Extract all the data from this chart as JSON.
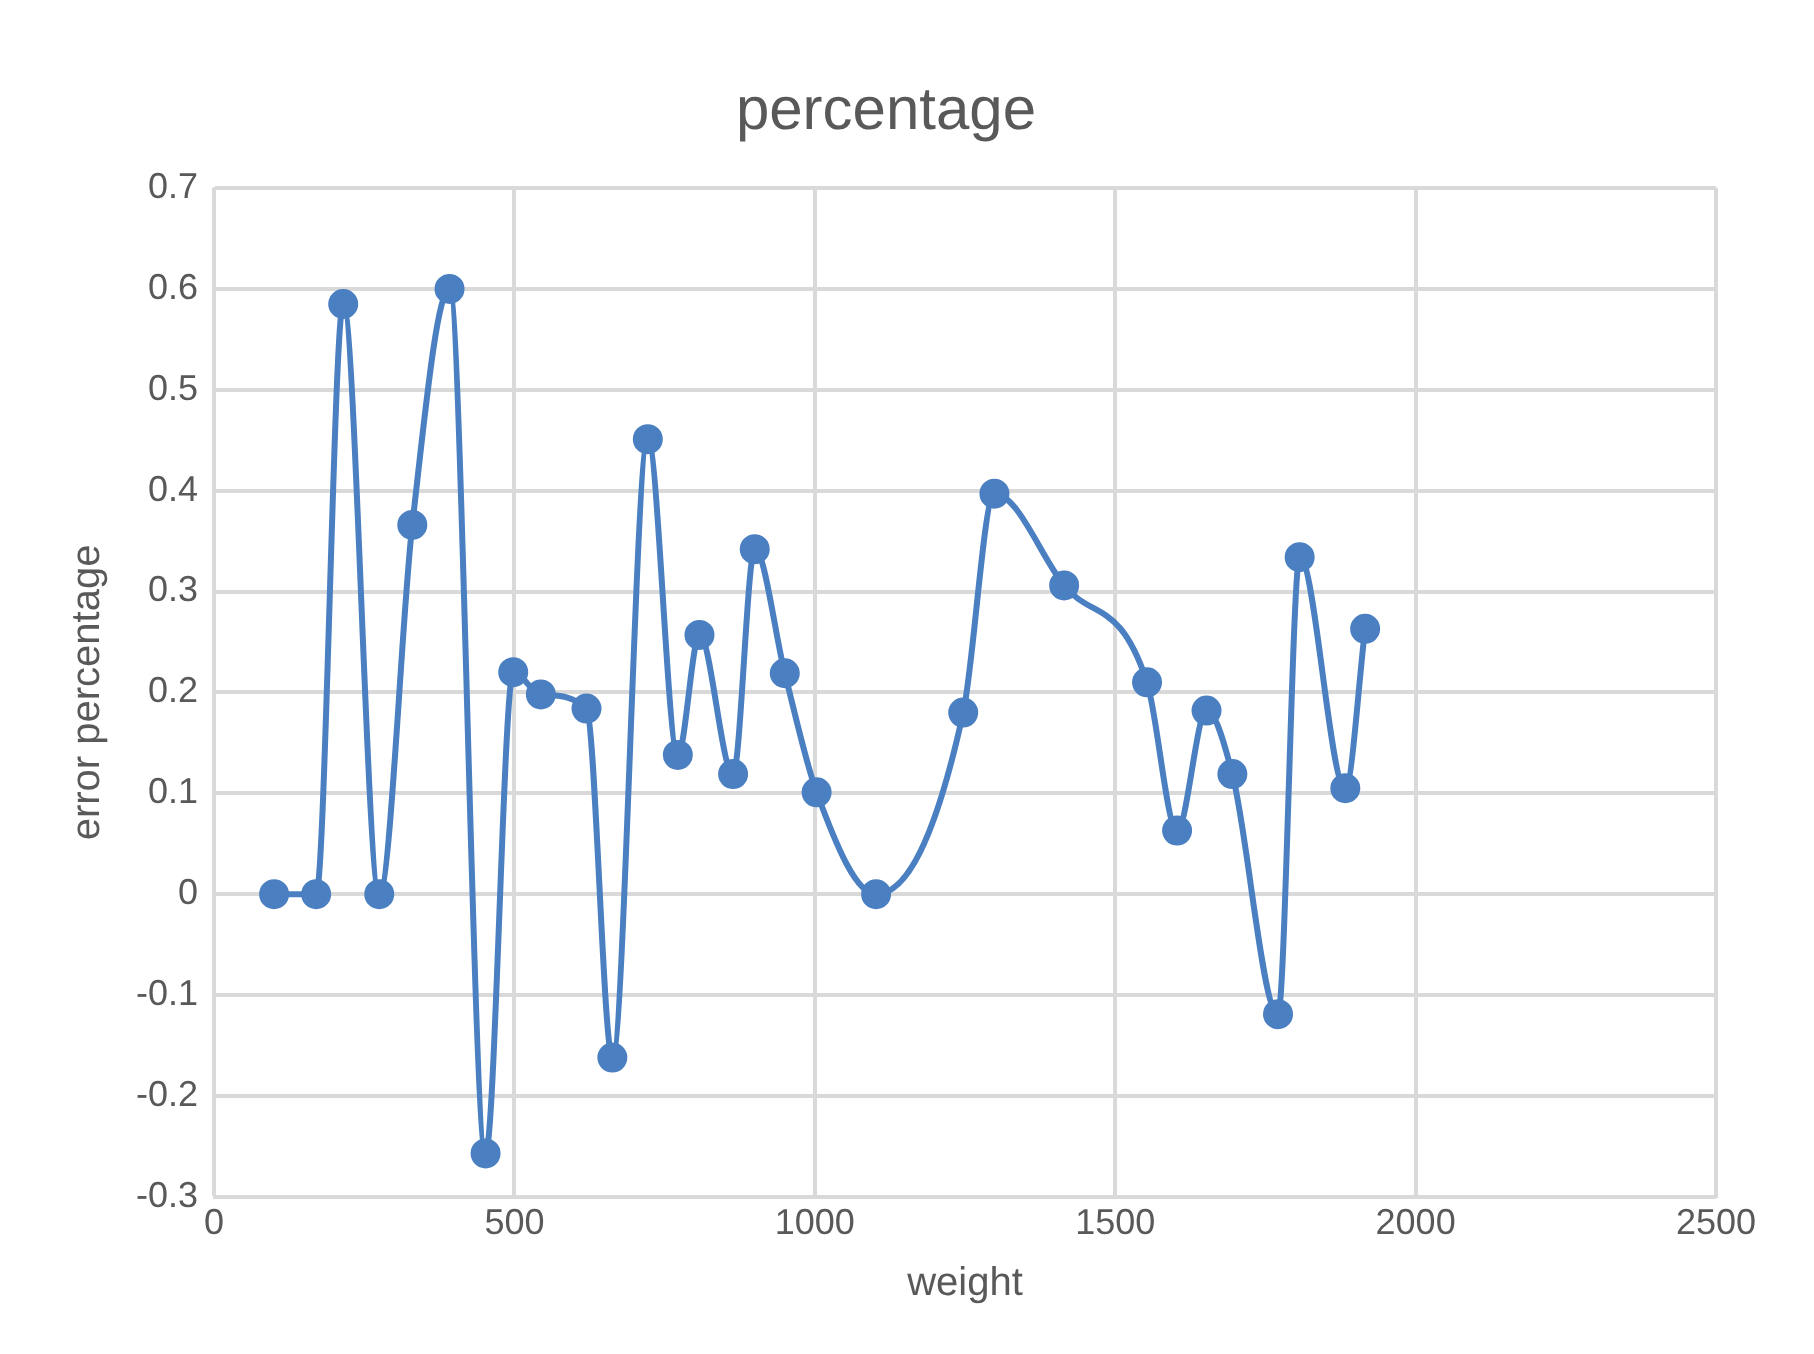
{
  "chart_data": {
    "type": "line",
    "title": "percentage",
    "xlabel": "weight",
    "ylabel": "error percentage",
    "xlim": [
      0,
      2500
    ],
    "xticks": [
      0,
      500,
      1000,
      1500,
      2000,
      2500
    ],
    "ylim": [
      -0.3,
      0.7
    ],
    "yticks": [
      -0.3,
      -0.2,
      -0.1,
      0,
      0.1,
      0.2,
      0.3,
      0.4,
      0.5,
      0.6,
      0.7
    ],
    "grid": true,
    "legend": false,
    "marker": "circle",
    "line_style": "solid",
    "series": [
      {
        "color": "#4a7fc1",
        "x": [
          100,
          170,
          215,
          275,
          330,
          392,
          452,
          498,
          544,
          620,
          663,
          722,
          772,
          808,
          864,
          900,
          950,
          1003,
          1102,
          1247,
          1299,
          1415,
          1553,
          1603,
          1652,
          1695,
          1771,
          1807,
          1883,
          1916
        ],
        "values": [
          0,
          0,
          0.585,
          0,
          0.366,
          0.6,
          -0.257,
          0.22,
          0.198,
          0.184,
          -0.162,
          0.451,
          0.138,
          0.257,
          0.119,
          0.342,
          0.219,
          0.101,
          0,
          0.18,
          0.397,
          0.306,
          0.21,
          0.063,
          0.182,
          0.119,
          -0.119,
          0.334,
          0.105,
          0.263
        ]
      }
    ]
  }
}
